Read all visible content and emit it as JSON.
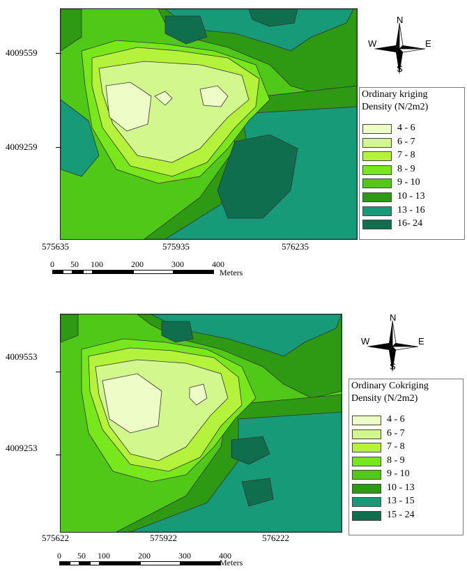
{
  "maps": [
    {
      "legend_title_1": "Ordinary  kriging",
      "legend_title_2": "Density (N/2m2)",
      "classes": [
        {
          "label": "4 - 6",
          "color": "#eefcc8"
        },
        {
          "label": "6 - 7",
          "color": "#d2f78c"
        },
        {
          "label": "7 - 8",
          "color": "#b4f23c"
        },
        {
          "label": "8 - 9",
          "color": "#78e81c"
        },
        {
          "label": "9 - 10",
          "color": "#50c818"
        },
        {
          "label": "10 - 13",
          "color": "#2e9a14"
        },
        {
          "label": "13 - 16",
          "color": "#169a78"
        },
        {
          "label": "16- 24",
          "color": "#0f6e4e"
        }
      ],
      "y_ticks": [
        "4009559",
        "4009259"
      ],
      "x_ticks": [
        "575635",
        "575935",
        "576235"
      ],
      "compass": {
        "n": "N",
        "e": "E",
        "s": "S",
        "w": "W"
      },
      "scale_ticks": [
        "0",
        "50",
        "100",
        "200",
        "300",
        "400"
      ],
      "scale_unit": "Meters"
    },
    {
      "legend_title_1": "Ordinary Cokriging",
      "legend_title_2": "Density (N/2m2)",
      "classes": [
        {
          "label": "4 - 6",
          "color": "#eefcc8"
        },
        {
          "label": "6 - 7",
          "color": "#d2f78c"
        },
        {
          "label": "7 - 8",
          "color": "#b4f23c"
        },
        {
          "label": "8 - 9",
          "color": "#78e81c"
        },
        {
          "label": "9 - 10",
          "color": "#50c818"
        },
        {
          "label": "10 - 13",
          "color": "#2e9a14"
        },
        {
          "label": "13 - 15",
          "color": "#169a78"
        },
        {
          "label": "15 - 24",
          "color": "#0f6e4e"
        }
      ],
      "y_ticks": [
        "4009553",
        "4009253"
      ],
      "x_ticks": [
        "575622",
        "575922",
        "576222"
      ],
      "compass": {
        "n": "N",
        "e": "E",
        "s": "S",
        "w": "W"
      },
      "scale_ticks": [
        "0",
        "50",
        "100",
        "200",
        "300",
        "400"
      ],
      "scale_unit": "Meters"
    }
  ]
}
